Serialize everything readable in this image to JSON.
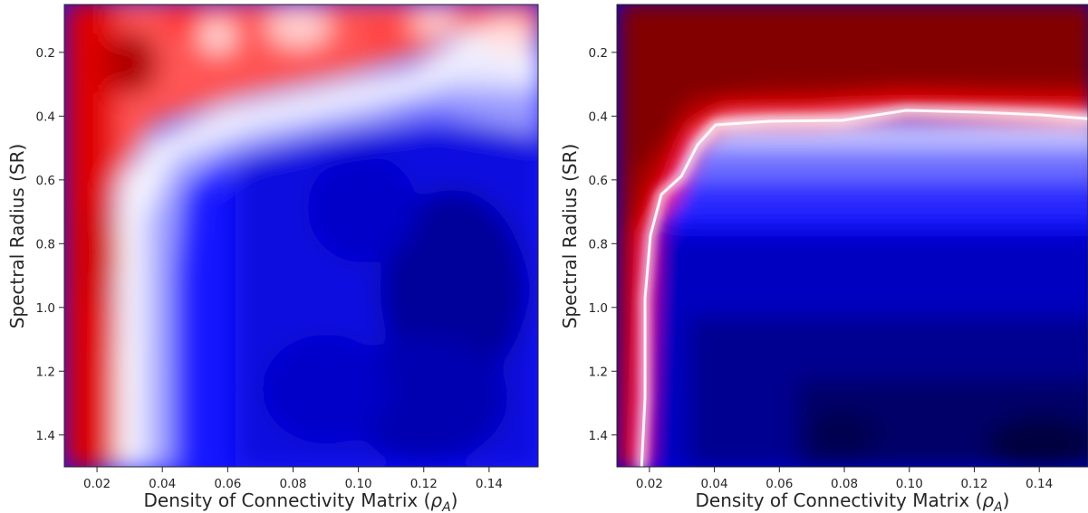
{
  "chart_data": [
    {
      "type": "heatmap",
      "xlabel": "Density of Connectivity Matrix (ρ_A)",
      "xlabel_main": "Density of Connectivity Matrix (",
      "xlabel_symbol": "ρ",
      "xlabel_subscript": "A",
      "xlabel_close": ")",
      "ylabel": "Spectral Radius (SR)",
      "xlim": [
        0.01,
        0.155
      ],
      "ylim": [
        1.5,
        0.05
      ],
      "y_inverted": true,
      "xticks": [
        "0.02",
        "0.04",
        "0.06",
        "0.08",
        "0.10",
        "0.12",
        "0.14"
      ],
      "yticks": [
        "0.2",
        "0.4",
        "0.6",
        "0.8",
        "1.0",
        "1.2",
        "1.4"
      ],
      "colormap": "seismic (red-white-blue)",
      "colors": {
        "high": "#ff0000",
        "mid": "#ffffff",
        "low": "#0000ff"
      },
      "regions": [
        {
          "area": "low density (x < ~0.03)",
          "color": "red"
        },
        {
          "area": "low spectral radius (y < ~0.3)",
          "color": "light red / white"
        },
        {
          "area": "x > ~0.04 and y > ~0.45",
          "color": "blue",
          "darkest_near": [
            0.14,
            0.9
          ]
        }
      ],
      "boundary_x": [
        0.012,
        0.035,
        0.056,
        0.075,
        0.098,
        0.12,
        0.135,
        0.155
      ],
      "boundary_y": [
        0.3,
        0.4,
        0.4,
        0.32,
        0.31,
        0.3,
        0.22,
        0.2
      ]
    },
    {
      "type": "heatmap",
      "xlabel": "Density of Connectivity Matrix (ρ_A)",
      "xlabel_main": "Density of Connectivity Matrix (",
      "xlabel_symbol": "ρ",
      "xlabel_subscript": "A",
      "xlabel_close": ")",
      "ylabel": "Spectral Radius (SR)",
      "xlim": [
        0.01,
        0.155
      ],
      "ylim": [
        1.5,
        0.05
      ],
      "y_inverted": true,
      "xticks": [
        "0.02",
        "0.04",
        "0.06",
        "0.08",
        "0.10",
        "0.12",
        "0.14"
      ],
      "yticks": [
        "0.2",
        "0.4",
        "0.6",
        "0.8",
        "1.0",
        "1.2",
        "1.4"
      ],
      "colormap": "seismic (dark red - red - white - blue - dark blue)",
      "colors": {
        "high": "#800000",
        "mid": "#ffffff",
        "low": "#00004d"
      },
      "regions": [
        {
          "area": "y < ~0.38 (all densities)",
          "color": "dark red"
        },
        {
          "area": "x < ~0.02",
          "color": "red"
        },
        {
          "area": "x > ~0.03 and y > ~0.45",
          "color": "blue",
          "darkest_near": [
            0.14,
            1.45
          ]
        }
      ],
      "boundary_x": [
        0.01,
        0.02,
        0.03,
        0.04,
        0.05,
        0.08,
        0.1,
        0.13,
        0.155
      ],
      "boundary_y": [
        0.35,
        0.4,
        0.4,
        0.41,
        0.42,
        0.42,
        0.38,
        0.39,
        0.41
      ]
    }
  ]
}
